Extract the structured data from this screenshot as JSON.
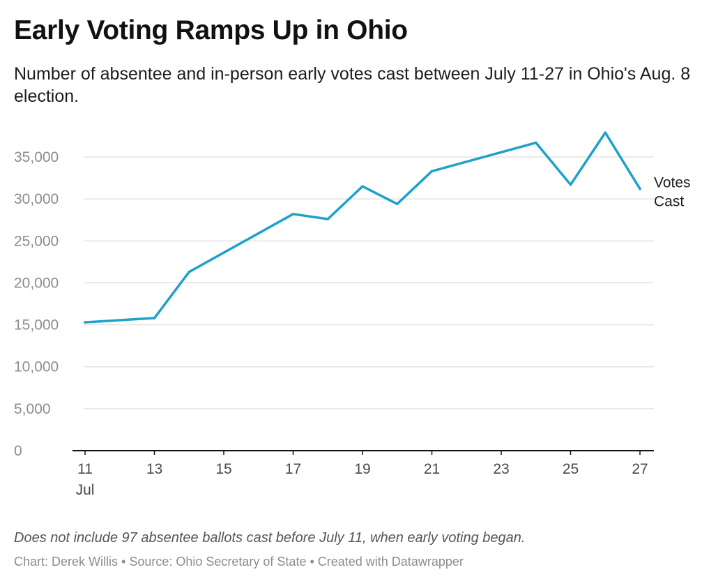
{
  "title": "Early Voting Ramps Up in Ohio",
  "subtitle": "Number of absentee and in-person early votes cast between July 11-27 in Ohio's Aug. 8 election.",
  "note": "Does not include 97 absentee ballots cast before July 11, when early voting began.",
  "footer": "Chart: Derek Willis • Source: Ohio Secretary of State • Created with Datawrapper",
  "colors": {
    "line": "#1fa1c9",
    "grid": "#e3e3e3",
    "axis": "#111111"
  },
  "chart_data": {
    "type": "line",
    "title": "Early Voting Ramps Up in Ohio",
    "xlabel": "",
    "ylabel": "",
    "x": [
      11,
      13,
      14,
      17,
      18,
      19,
      20,
      21,
      24,
      25,
      26,
      27
    ],
    "series": [
      {
        "name": "Votes Cast",
        "values": [
          15300,
          15800,
          21300,
          28200,
          27600,
          31500,
          29400,
          33300,
          36700,
          31700,
          37900,
          31200
        ]
      }
    ],
    "series_label_lines": [
      "Votes",
      "Cast"
    ],
    "xlim": [
      11,
      27
    ],
    "ylim": [
      0,
      35000
    ],
    "y_ticks": [
      0,
      5000,
      10000,
      15000,
      20000,
      25000,
      30000,
      35000
    ],
    "y_tick_labels": [
      "0",
      "5,000",
      "10,000",
      "15,000",
      "20,000",
      "25,000",
      "30,000",
      "35,000"
    ],
    "x_ticks": [
      11,
      13,
      15,
      17,
      19,
      21,
      23,
      25,
      27
    ],
    "x_tick_labels": [
      "11",
      "13",
      "15",
      "17",
      "19",
      "21",
      "23",
      "25",
      "27"
    ],
    "x_month_label": "Jul",
    "grid": true,
    "legend": "direct-label-right"
  }
}
